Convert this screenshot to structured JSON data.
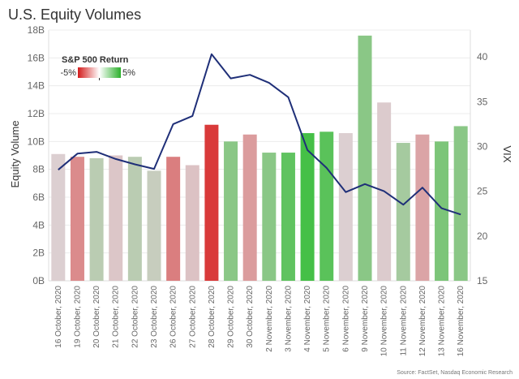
{
  "title": "U.S. Equity Volumes",
  "source": "Source: FactSet, Nasdaq Economic Research",
  "colors": {
    "negative": "#d93a3a",
    "neutral": "#dccfd1",
    "positive": "#45c047",
    "line": "#1f2f78"
  },
  "chart_data": {
    "type": "bar",
    "title": "U.S. Equity Volumes",
    "categories": [
      "16 October, 2020",
      "19 October, 2020",
      "20 October, 2020",
      "21 October, 2020",
      "22 October, 2020",
      "23 October, 2020",
      "26 October, 2020",
      "27 October, 2020",
      "28 October, 2020",
      "29 October, 2020",
      "30 October, 2020",
      "2 November, 2020",
      "3 November, 2020",
      "4 November, 2020",
      "5 November, 2020",
      "6 November, 2020",
      "9 November, 2020",
      "10 November, 2020",
      "11 November, 2020",
      "12 November, 2020",
      "13 November, 2020",
      "16 November, 2020"
    ],
    "ylabel": "Equity Volume",
    "ylim": [
      0,
      18
    ],
    "yticks": [
      "0B",
      "2B",
      "4B",
      "6B",
      "8B",
      "10B",
      "12B",
      "14B",
      "16B",
      "18B"
    ],
    "y2label": "VIX",
    "y2lim": [
      15,
      43
    ],
    "y2ticks": [
      "15",
      "20",
      "25",
      "30",
      "35",
      "40"
    ],
    "series": [
      {
        "name": "Equity Volume (B)",
        "type": "bar",
        "values": [
          9.1,
          8.9,
          8.8,
          9.0,
          8.9,
          7.9,
          8.9,
          8.3,
          11.2,
          10.0,
          10.5,
          9.2,
          9.2,
          10.6,
          10.7,
          10.6,
          17.6,
          12.8,
          9.9,
          10.5,
          10.0,
          11.1
        ]
      },
      {
        "name": "VIX",
        "type": "line",
        "values": [
          27.4,
          29.2,
          29.4,
          28.6,
          28.0,
          27.5,
          32.5,
          33.4,
          40.3,
          37.6,
          38.0,
          37.1,
          35.5,
          29.6,
          27.6,
          24.9,
          25.8,
          25.0,
          23.5,
          25.4,
          23.1,
          22.4
        ]
      }
    ],
    "sp500_return_pct": [
      0.0,
      -1.6,
      0.5,
      -0.2,
      0.5,
      0.3,
      -1.9,
      -0.3,
      -3.5,
      1.2,
      -1.2,
      1.2,
      1.8,
      2.2,
      1.9,
      0.0,
      1.2,
      -0.1,
      0.8,
      -1.0,
      1.4,
      1.2
    ],
    "legend": {
      "title": "S&P 500 Return",
      "min_label": "-5%",
      "max_label": "5%",
      "position": "top-left"
    }
  }
}
